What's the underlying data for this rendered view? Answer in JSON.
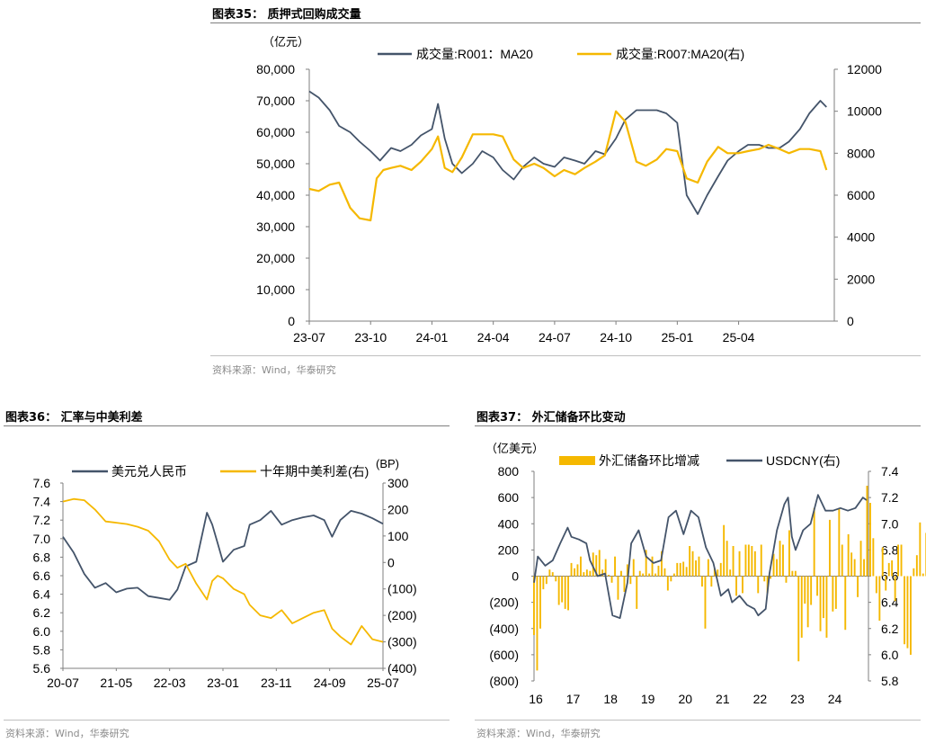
{
  "colors": {
    "navy": "#44546a",
    "gold": "#f5b800",
    "axis": "#7f7f7f",
    "rule": "#7f7f7f"
  },
  "source_text": "资料来源：Wind，华泰研究",
  "chart_data": [
    {
      "id": "fig35",
      "type": "line",
      "title": "图表35：  质押式回购成交量",
      "unit_left": "（亿元）",
      "series": [
        {
          "name": "成交量:R001：MA20",
          "axis": "left",
          "color": "#44546a",
          "x": [
            "2023-07-01",
            "2023-07-15",
            "2023-08-01",
            "2023-08-15",
            "2023-09-01",
            "2023-09-15",
            "2023-10-01",
            "2023-10-15",
            "2023-11-01",
            "2023-11-15",
            "2023-12-01",
            "2023-12-15",
            "2024-01-01",
            "2024-01-10",
            "2024-01-20",
            "2024-02-01",
            "2024-02-15",
            "2024-03-01",
            "2024-03-15",
            "2024-04-01",
            "2024-04-15",
            "2024-05-01",
            "2024-05-15",
            "2024-06-01",
            "2024-06-15",
            "2024-07-01",
            "2024-07-15",
            "2024-08-01",
            "2024-08-15",
            "2024-09-01",
            "2024-09-15",
            "2024-10-01",
            "2024-10-15",
            "2024-11-01",
            "2024-11-15",
            "2024-12-01",
            "2024-12-15",
            "2025-01-01",
            "2025-01-15",
            "2025-02-01",
            "2025-02-15",
            "2025-03-01",
            "2025-03-15",
            "2025-04-01",
            "2025-04-15",
            "2025-05-01",
            "2025-05-15",
            "2025-06-01",
            "2025-06-15",
            "2025-07-01",
            "2025-07-15",
            "2025-08-01",
            "2025-08-10"
          ],
          "values": [
            73000,
            71000,
            67000,
            62000,
            60000,
            57000,
            54000,
            51000,
            55000,
            54000,
            56000,
            59000,
            61000,
            69000,
            58000,
            50000,
            47000,
            50000,
            54000,
            52000,
            48000,
            45000,
            49000,
            52000,
            50000,
            49000,
            52000,
            51000,
            50000,
            54000,
            53000,
            58000,
            64000,
            67000,
            67000,
            67000,
            66000,
            63000,
            40000,
            34000,
            40000,
            46000,
            51000,
            54000,
            56000,
            56000,
            55000,
            55000,
            57000,
            61000,
            66000,
            70000,
            68000
          ]
        },
        {
          "name": "成交量:R007:MA20(右)",
          "axis": "right",
          "color": "#f5b800",
          "x": [
            "2023-07-01",
            "2023-07-15",
            "2023-08-01",
            "2023-08-15",
            "2023-09-01",
            "2023-09-15",
            "2023-10-01",
            "2023-10-10",
            "2023-10-20",
            "2023-11-01",
            "2023-11-15",
            "2023-12-01",
            "2023-12-15",
            "2024-01-01",
            "2024-01-10",
            "2024-01-20",
            "2024-02-01",
            "2024-02-15",
            "2024-03-01",
            "2024-03-15",
            "2024-04-01",
            "2024-04-15",
            "2024-05-01",
            "2024-05-15",
            "2024-06-01",
            "2024-06-15",
            "2024-07-01",
            "2024-07-15",
            "2024-08-01",
            "2024-08-15",
            "2024-09-01",
            "2024-09-15",
            "2024-10-01",
            "2024-10-15",
            "2024-11-01",
            "2024-11-15",
            "2024-12-01",
            "2024-12-15",
            "2025-01-01",
            "2025-01-15",
            "2025-02-01",
            "2025-02-15",
            "2025-03-01",
            "2025-03-15",
            "2025-04-01",
            "2025-04-15",
            "2025-05-01",
            "2025-05-15",
            "2025-06-01",
            "2025-06-15",
            "2025-07-01",
            "2025-07-15",
            "2025-08-01",
            "2025-08-10"
          ],
          "values": [
            6300,
            6200,
            6500,
            6600,
            5400,
            4900,
            4800,
            6800,
            7200,
            7300,
            7400,
            7200,
            7600,
            8200,
            8800,
            7300,
            7100,
            7800,
            8900,
            8900,
            8900,
            8800,
            7700,
            7300,
            7500,
            7300,
            6900,
            7200,
            7000,
            7300,
            7600,
            7900,
            10000,
            9500,
            7600,
            7400,
            7700,
            8200,
            8100,
            6800,
            6600,
            7600,
            8300,
            8000,
            8000,
            8100,
            8200,
            8400,
            8200,
            8000,
            8200,
            8200,
            8100,
            7200
          ]
        }
      ],
      "x_ticks": [
        "23-07",
        "23-10",
        "24-01",
        "24-04",
        "24-07",
        "24-10",
        "25-01",
        "25-04"
      ],
      "y_left": {
        "min": 0,
        "max": 80000,
        "ticks": [
          "0",
          "10,000",
          "20,000",
          "30,000",
          "40,000",
          "50,000",
          "60,000",
          "70,000",
          "80,000"
        ]
      },
      "y_right": {
        "min": 0,
        "max": 12000,
        "ticks": [
          "0",
          "2000",
          "4000",
          "6000",
          "8000",
          "10000",
          "12000"
        ]
      },
      "legend_position": "top"
    },
    {
      "id": "fig36",
      "type": "line",
      "title": "图表36：  汇率与中美利差",
      "unit_right": "(BP)",
      "series": [
        {
          "name": "美元兑人民币",
          "axis": "left",
          "color": "#44546a",
          "x": [
            "2020-07-01",
            "2020-09-01",
            "2020-11-01",
            "2021-01-01",
            "2021-03-01",
            "2021-05-01",
            "2021-07-01",
            "2021-09-01",
            "2021-11-01",
            "2022-01-01",
            "2022-03-01",
            "2022-04-15",
            "2022-06-01",
            "2022-08-01",
            "2022-10-01",
            "2022-11-01",
            "2022-12-01",
            "2023-01-01",
            "2023-03-01",
            "2023-05-01",
            "2023-06-01",
            "2023-08-01",
            "2023-10-01",
            "2023-12-01",
            "2024-02-01",
            "2024-04-01",
            "2024-06-01",
            "2024-08-01",
            "2024-09-15",
            "2024-11-01",
            "2025-01-01",
            "2025-03-01",
            "2025-05-01",
            "2025-07-01"
          ],
          "values": [
            7.02,
            6.85,
            6.62,
            6.47,
            6.52,
            6.42,
            6.46,
            6.47,
            6.38,
            6.36,
            6.34,
            6.45,
            6.7,
            6.75,
            7.28,
            7.15,
            6.95,
            6.75,
            6.88,
            6.92,
            7.15,
            7.2,
            7.3,
            7.15,
            7.2,
            7.23,
            7.25,
            7.2,
            7.02,
            7.2,
            7.3,
            7.27,
            7.22,
            7.16
          ]
        },
        {
          "name": "十年期中美利差(右)",
          "axis": "right",
          "color": "#f5b800",
          "x": [
            "2020-07-01",
            "2020-09-01",
            "2020-11-01",
            "2021-01-01",
            "2021-03-01",
            "2021-05-01",
            "2021-07-01",
            "2021-09-01",
            "2021-11-01",
            "2022-01-01",
            "2022-03-01",
            "2022-04-15",
            "2022-06-01",
            "2022-08-01",
            "2022-10-01",
            "2022-11-01",
            "2022-12-01",
            "2023-01-01",
            "2023-03-01",
            "2023-05-01",
            "2023-06-01",
            "2023-08-01",
            "2023-10-01",
            "2023-12-01",
            "2024-02-01",
            "2024-04-01",
            "2024-06-01",
            "2024-08-01",
            "2024-09-15",
            "2024-11-01",
            "2025-01-01",
            "2025-03-01",
            "2025-05-01",
            "2025-07-01"
          ],
          "values": [
            230,
            240,
            235,
            200,
            155,
            150,
            145,
            135,
            120,
            80,
            10,
            -20,
            -5,
            -80,
            -140,
            -70,
            -50,
            -60,
            -100,
            -120,
            -160,
            -200,
            -210,
            -180,
            -230,
            -210,
            -190,
            -180,
            -250,
            -280,
            -310,
            -240,
            -290,
            -300
          ]
        }
      ],
      "x_ticks": [
        "20-07",
        "21-05",
        "22-03",
        "23-01",
        "23-11",
        "24-09",
        "25-07"
      ],
      "y_left": {
        "min": 5.6,
        "max": 7.6,
        "ticks": [
          "5.6",
          "5.8",
          "6.0",
          "6.2",
          "6.4",
          "6.6",
          "6.8",
          "7.0",
          "7.2",
          "7.4",
          "7.6"
        ]
      },
      "y_right": {
        "min": -400,
        "max": 300,
        "ticks": [
          "(400)",
          "(300)",
          "(200)",
          "(100)",
          "0",
          "100",
          "200",
          "300"
        ]
      },
      "legend_position": "top"
    },
    {
      "id": "fig37",
      "type": "bar",
      "title": "图表37：  外汇储备环比变动",
      "unit_left": "（亿美元）",
      "series": [
        {
          "name": "外汇储备环比增减",
          "axis": "left",
          "color": "#f5b800",
          "kind": "bar",
          "x_start": 2016.0,
          "x_step": 0.0833,
          "values": [
            -450,
            -720,
            -400,
            -100,
            -60,
            50,
            30,
            -40,
            -220,
            -200,
            -250,
            -260,
            100,
            60,
            90,
            150,
            30,
            50,
            40,
            180,
            160,
            200,
            50,
            130,
            10,
            -50,
            150,
            -180,
            40,
            -120,
            90,
            -60,
            130,
            -250,
            40,
            20,
            200,
            20,
            150,
            20,
            80,
            190,
            60,
            -110,
            -40,
            20,
            100,
            100,
            110,
            70,
            230,
            190,
            120,
            150,
            -80,
            -400,
            130,
            -80,
            60,
            50,
            100,
            390,
            270,
            50,
            230,
            -150,
            190,
            -130,
            240,
            240,
            230,
            190,
            -130,
            240,
            -40,
            -130,
            -20,
            170,
            130,
            270,
            240,
            -50,
            350,
            40,
            40,
            -650,
            -470,
            -210,
            -390,
            -220,
            520,
            -150,
            -420,
            -320,
            -470,
            430,
            -270,
            -250,
            520,
            240,
            -410,
            320,
            180,
            130,
            -160,
            270,
            130,
            690,
            560,
            290,
            -130,
            -340,
            220,
            -110,
            100,
            120,
            -190,
            240,
            240,
            -520,
            -550,
            -600,
            60,
            160,
            410,
            20,
            330,
            80
          ]
        },
        {
          "name": "USDCNY(右)",
          "axis": "right",
          "color": "#44546a",
          "kind": "line",
          "x": [
            2016.0,
            2016.1,
            2016.3,
            2016.5,
            2016.7,
            2016.9,
            2017.0,
            2017.2,
            2017.4,
            2017.5,
            2017.7,
            2017.9,
            2018.1,
            2018.3,
            2018.5,
            2018.6,
            2018.8,
            2019.0,
            2019.2,
            2019.4,
            2019.6,
            2019.8,
            2020.0,
            2020.2,
            2020.4,
            2020.6,
            2020.8,
            2021.0,
            2021.2,
            2021.3,
            2021.5,
            2021.7,
            2021.9,
            2022.0,
            2022.2,
            2022.3,
            2022.5,
            2022.7,
            2022.8,
            2022.9,
            2023.0,
            2023.2,
            2023.4,
            2023.6,
            2023.8,
            2024.0,
            2024.2,
            2024.4,
            2024.6,
            2024.8,
            2024.9
          ],
          "values": [
            6.55,
            6.75,
            6.68,
            6.72,
            6.85,
            6.97,
            6.9,
            6.88,
            6.85,
            6.72,
            6.6,
            6.62,
            6.3,
            6.28,
            6.55,
            6.85,
            6.95,
            6.75,
            6.7,
            6.72,
            7.05,
            7.1,
            6.92,
            7.1,
            7.05,
            6.82,
            6.7,
            6.45,
            6.5,
            6.4,
            6.45,
            6.38,
            6.35,
            6.3,
            6.35,
            6.62,
            6.95,
            7.15,
            7.2,
            6.9,
            6.8,
            6.95,
            7.0,
            7.22,
            7.1,
            7.1,
            7.12,
            7.1,
            7.12,
            7.2,
            7.18
          ]
        }
      ],
      "x_ticks": [
        "16",
        "17",
        "18",
        "19",
        "20",
        "21",
        "22",
        "23",
        "24"
      ],
      "y_left": {
        "min": -800,
        "max": 800,
        "ticks": [
          "(800)",
          "(600)",
          "(400)",
          "(200)",
          "0",
          "200",
          "400",
          "600",
          "800"
        ]
      },
      "y_right": {
        "min": 5.8,
        "max": 7.4,
        "ticks": [
          "5.8",
          "6.0",
          "6.2",
          "6.4",
          "6.6",
          "6.8",
          "7.0",
          "7.2",
          "7.4"
        ]
      },
      "legend_position": "top"
    }
  ]
}
